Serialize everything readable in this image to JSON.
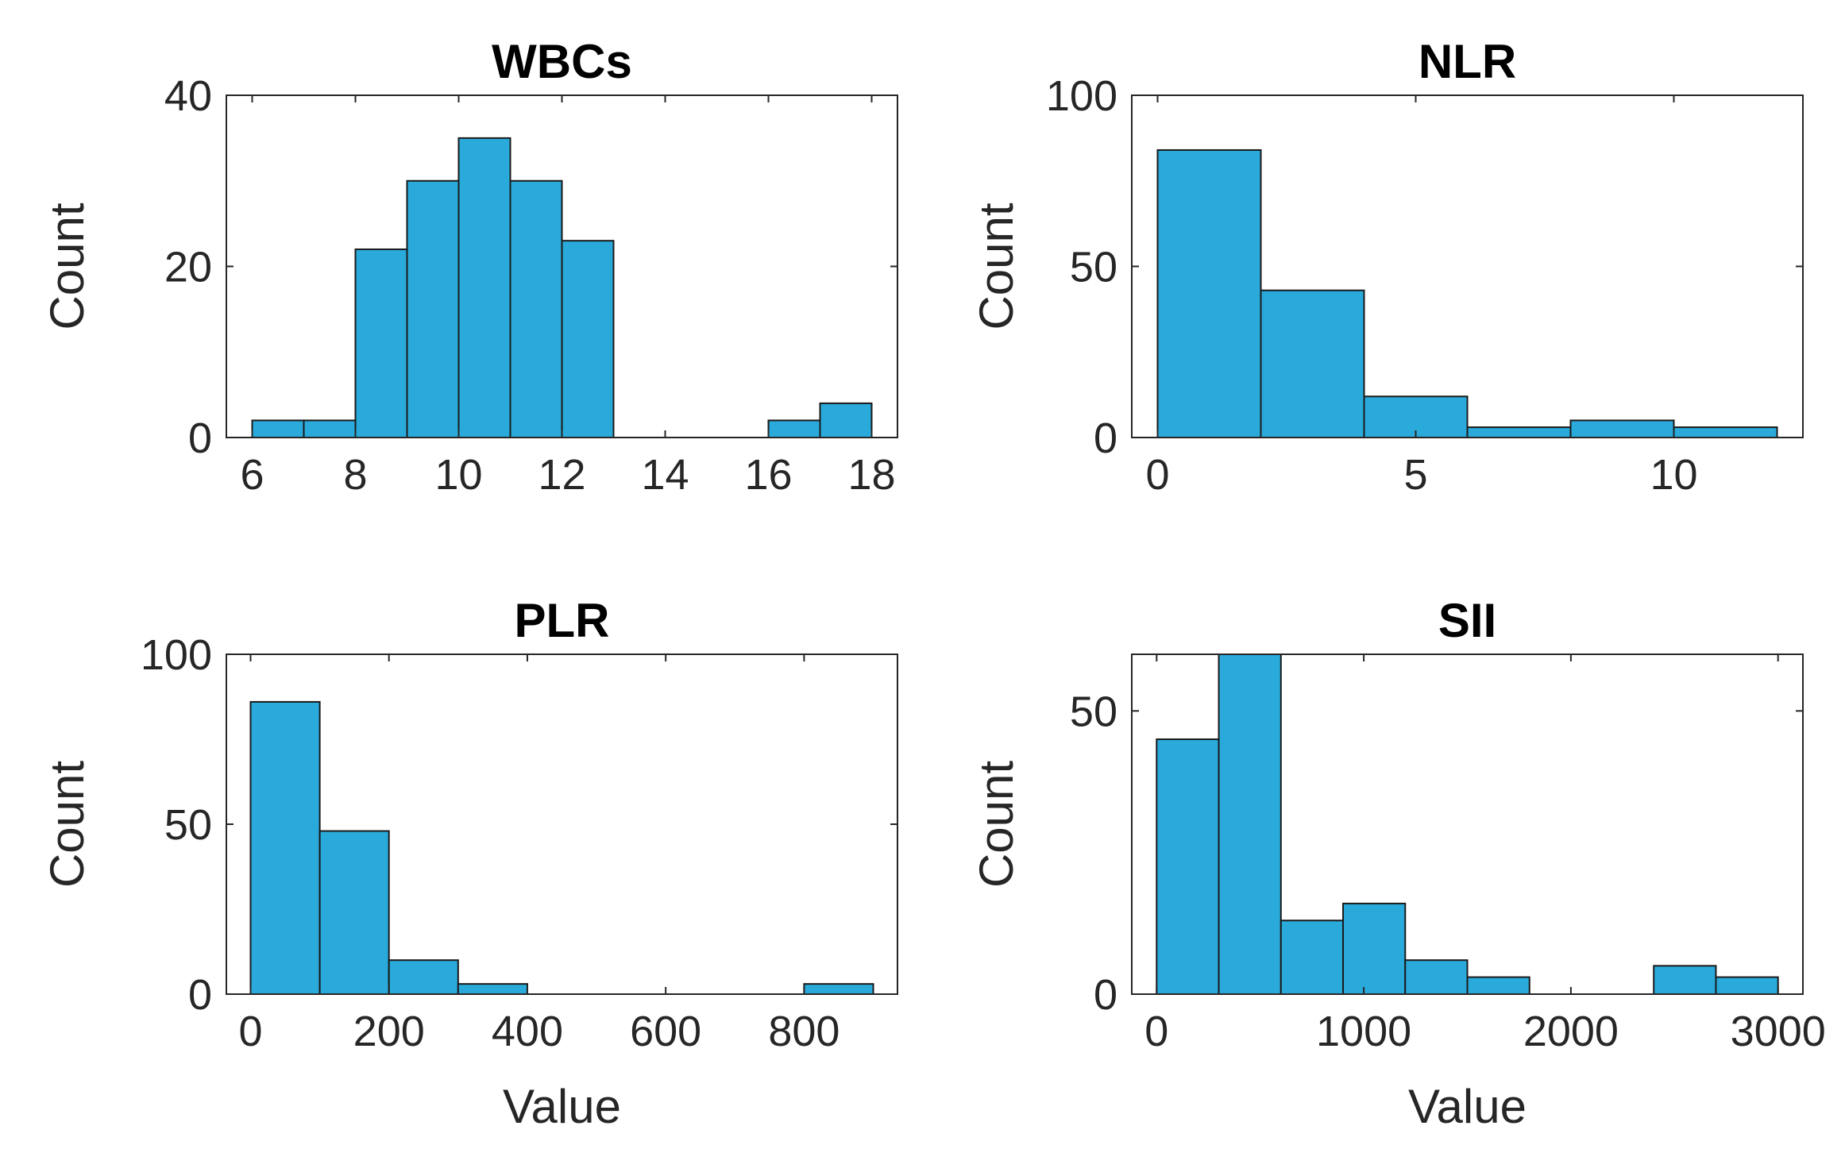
{
  "chart_data": [
    {
      "type": "histogram",
      "title": "WBCs",
      "xlabel": "",
      "ylabel": "Count",
      "xlim": [
        5.5,
        18.5
      ],
      "ylim": [
        0,
        40
      ],
      "xticks": [
        6,
        8,
        10,
        12,
        14,
        16,
        18
      ],
      "yticks": [
        0,
        20,
        40
      ],
      "bins": [
        {
          "x0": 6,
          "x1": 7,
          "count": 2
        },
        {
          "x0": 7,
          "x1": 8,
          "count": 2
        },
        {
          "x0": 8,
          "x1": 9,
          "count": 22
        },
        {
          "x0": 9,
          "x1": 10,
          "count": 30
        },
        {
          "x0": 10,
          "x1": 11,
          "count": 35
        },
        {
          "x0": 11,
          "x1": 12,
          "count": 30
        },
        {
          "x0": 12,
          "x1": 13,
          "count": 23
        },
        {
          "x0": 13,
          "x1": 14,
          "count": 0
        },
        {
          "x0": 14,
          "x1": 15,
          "count": 0
        },
        {
          "x0": 15,
          "x1": 16,
          "count": 0
        },
        {
          "x0": 16,
          "x1": 17,
          "count": 2
        },
        {
          "x0": 17,
          "x1": 18,
          "count": 4
        }
      ]
    },
    {
      "type": "histogram",
      "title": "NLR",
      "xlabel": "",
      "ylabel": "Count",
      "xlim": [
        -0.5,
        12.5
      ],
      "ylim": [
        0,
        100
      ],
      "xticks": [
        0,
        5,
        10
      ],
      "yticks": [
        0,
        50,
        100
      ],
      "bins": [
        {
          "x0": 0,
          "x1": 2,
          "count": 84
        },
        {
          "x0": 2,
          "x1": 4,
          "count": 43
        },
        {
          "x0": 4,
          "x1": 6,
          "count": 12
        },
        {
          "x0": 6,
          "x1": 8,
          "count": 3
        },
        {
          "x0": 8,
          "x1": 10,
          "count": 5
        },
        {
          "x0": 10,
          "x1": 12,
          "count": 3
        }
      ]
    },
    {
      "type": "histogram",
      "title": "PLR",
      "xlabel": "Value",
      "ylabel": "Count",
      "xlim": [
        -35,
        935
      ],
      "ylim": [
        0,
        100
      ],
      "xticks": [
        0,
        200,
        400,
        600,
        800
      ],
      "yticks": [
        0,
        50,
        100
      ],
      "bins": [
        {
          "x0": 0,
          "x1": 100,
          "count": 86
        },
        {
          "x0": 100,
          "x1": 200,
          "count": 48
        },
        {
          "x0": 200,
          "x1": 300,
          "count": 10
        },
        {
          "x0": 300,
          "x1": 400,
          "count": 3
        },
        {
          "x0": 400,
          "x1": 500,
          "count": 0
        },
        {
          "x0": 500,
          "x1": 600,
          "count": 0
        },
        {
          "x0": 600,
          "x1": 700,
          "count": 0
        },
        {
          "x0": 700,
          "x1": 800,
          "count": 0
        },
        {
          "x0": 800,
          "x1": 900,
          "count": 3
        }
      ]
    },
    {
      "type": "histogram",
      "title": "SII",
      "xlabel": "Value",
      "ylabel": "Count",
      "xlim": [
        -120,
        3120
      ],
      "ylim": [
        0,
        60
      ],
      "xticks": [
        0,
        1000,
        2000,
        3000
      ],
      "yticks": [
        0,
        50
      ],
      "bins": [
        {
          "x0": 0,
          "x1": 300,
          "count": 45
        },
        {
          "x0": 300,
          "x1": 600,
          "count": 60
        },
        {
          "x0": 600,
          "x1": 900,
          "count": 13
        },
        {
          "x0": 900,
          "x1": 1200,
          "count": 16
        },
        {
          "x0": 1200,
          "x1": 1500,
          "count": 6
        },
        {
          "x0": 1500,
          "x1": 1800,
          "count": 3
        },
        {
          "x0": 1800,
          "x1": 2100,
          "count": 0
        },
        {
          "x0": 2100,
          "x1": 2400,
          "count": 0
        },
        {
          "x0": 2400,
          "x1": 2700,
          "count": 5
        },
        {
          "x0": 2700,
          "x1": 3000,
          "count": 3
        }
      ]
    }
  ],
  "colors": {
    "bar_fill": "#2AAADB",
    "bar_edge": "#1A1A1A",
    "axis": "#262626",
    "text": "#262626",
    "title": "#000000"
  }
}
